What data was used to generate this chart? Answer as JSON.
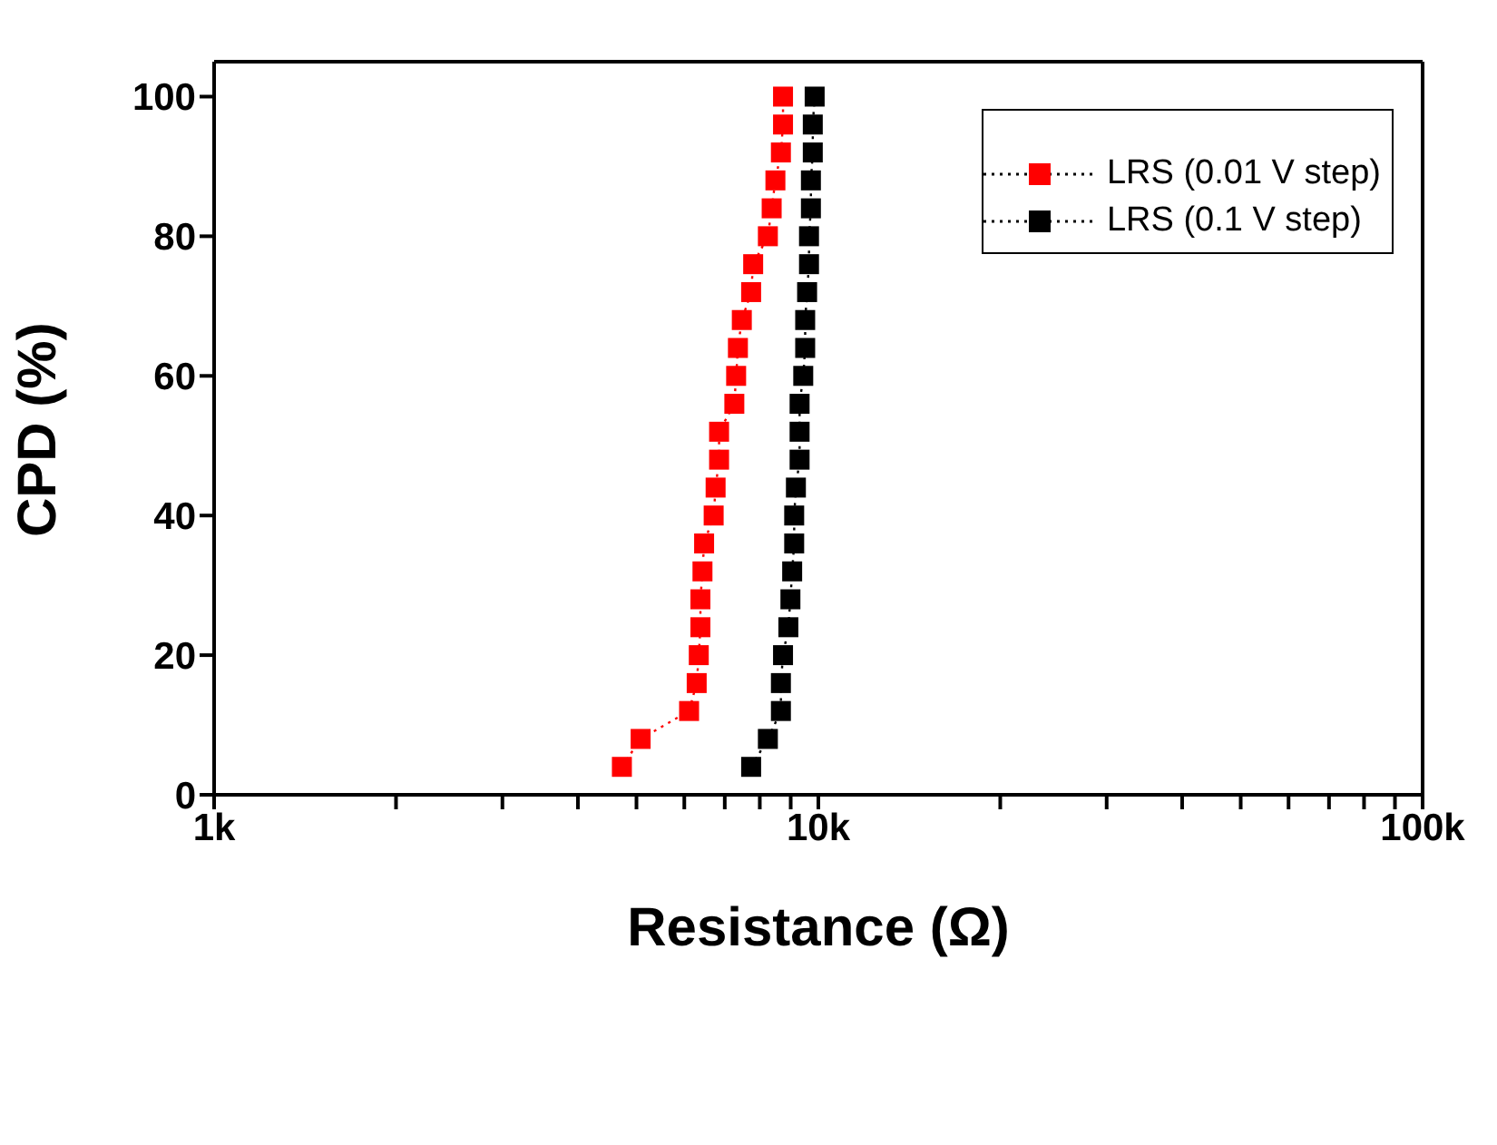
{
  "chart_data": {
    "type": "line",
    "xlabel": "Resistance (Ω)",
    "ylabel": "CPD (%)",
    "xlim": [
      1000,
      100000
    ],
    "xticks": [
      {
        "value": 1000,
        "label": "1k"
      },
      {
        "value": 2000,
        "label": null
      },
      {
        "value": 3000,
        "label": null
      },
      {
        "value": 4000,
        "label": null
      },
      {
        "value": 5000,
        "label": null
      },
      {
        "value": 6000,
        "label": null
      },
      {
        "value": 7000,
        "label": null
      },
      {
        "value": 8000,
        "label": null
      },
      {
        "value": 9000,
        "label": null
      },
      {
        "value": 10000,
        "label": "10k"
      },
      {
        "value": 20000,
        "label": null
      },
      {
        "value": 30000,
        "label": null
      },
      {
        "value": 40000,
        "label": null
      },
      {
        "value": 50000,
        "label": null
      },
      {
        "value": 60000,
        "label": null
      },
      {
        "value": 70000,
        "label": null
      },
      {
        "value": 80000,
        "label": null
      },
      {
        "value": 90000,
        "label": null
      },
      {
        "value": 100000,
        "label": "100k"
      }
    ],
    "ylim": [
      0,
      105
    ],
    "yticks": [
      0,
      20,
      40,
      60,
      80,
      100
    ],
    "log": "x",
    "legend": "top right",
    "marker": "square",
    "line_style": "dotted",
    "series": [
      {
        "name": "LRS (0.01 V step)",
        "color": "#ff0000",
        "x": [
          4730,
          5080,
          6110,
          6290,
          6340,
          6380,
          6380,
          6430,
          6470,
          6710,
          6760,
          6850,
          6850,
          7260,
          7310,
          7360,
          7470,
          7740,
          7800,
          8250,
          8370,
          8490,
          8670,
          8740,
          8740
        ],
        "values": [
          4,
          8,
          12,
          16,
          20,
          24,
          28,
          32,
          36,
          40,
          44,
          48,
          52,
          56,
          60,
          64,
          68,
          72,
          76,
          80,
          84,
          88,
          92,
          96,
          100
        ]
      },
      {
        "name": "LRS (0.1 V step)",
        "color": "#000000",
        "x": [
          7740,
          8250,
          8670,
          8670,
          8740,
          8920,
          8990,
          9050,
          9120,
          9120,
          9180,
          9310,
          9310,
          9310,
          9440,
          9510,
          9510,
          9580,
          9650,
          9650,
          9720,
          9720,
          9790,
          9790,
          9860
        ],
        "values": [
          4,
          8,
          12,
          16,
          20,
          24,
          28,
          32,
          36,
          40,
          44,
          48,
          52,
          56,
          60,
          64,
          68,
          72,
          76,
          80,
          84,
          88,
          92,
          96,
          100
        ]
      }
    ]
  }
}
